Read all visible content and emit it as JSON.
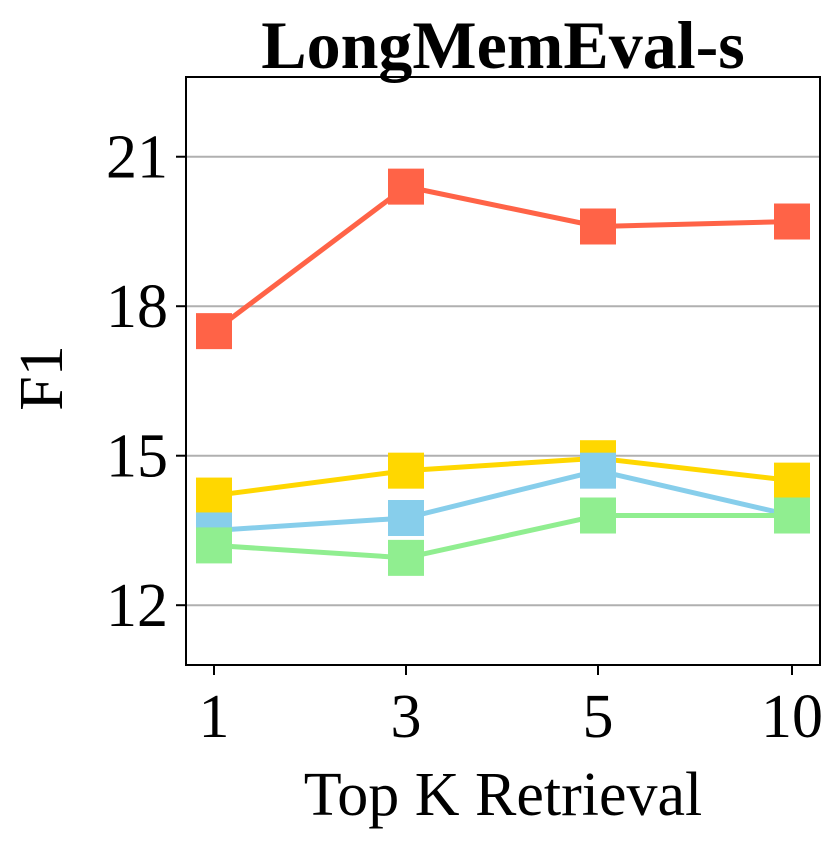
{
  "chart_data": {
    "type": "line",
    "title": "LongMemEval-s",
    "xlabel": "Top K Retrieval",
    "ylabel": "F1",
    "categories": [
      "1",
      "3",
      "5",
      "10"
    ],
    "ylim": [
      10.8,
      22.6
    ],
    "yticks": [
      12,
      15,
      18,
      21
    ],
    "grid": "y",
    "legend": "none",
    "series": [
      {
        "color": "#ff6347",
        "values": [
          17.5,
          20.4,
          19.6,
          19.7
        ]
      },
      {
        "color": "#ffd700",
        "values": [
          14.2,
          14.7,
          14.95,
          14.5
        ]
      },
      {
        "color": "#87ceeb",
        "values": [
          13.5,
          13.75,
          14.7,
          13.8
        ]
      },
      {
        "color": "#90ee90",
        "values": [
          13.2,
          12.95,
          13.8,
          13.8
        ]
      }
    ]
  }
}
